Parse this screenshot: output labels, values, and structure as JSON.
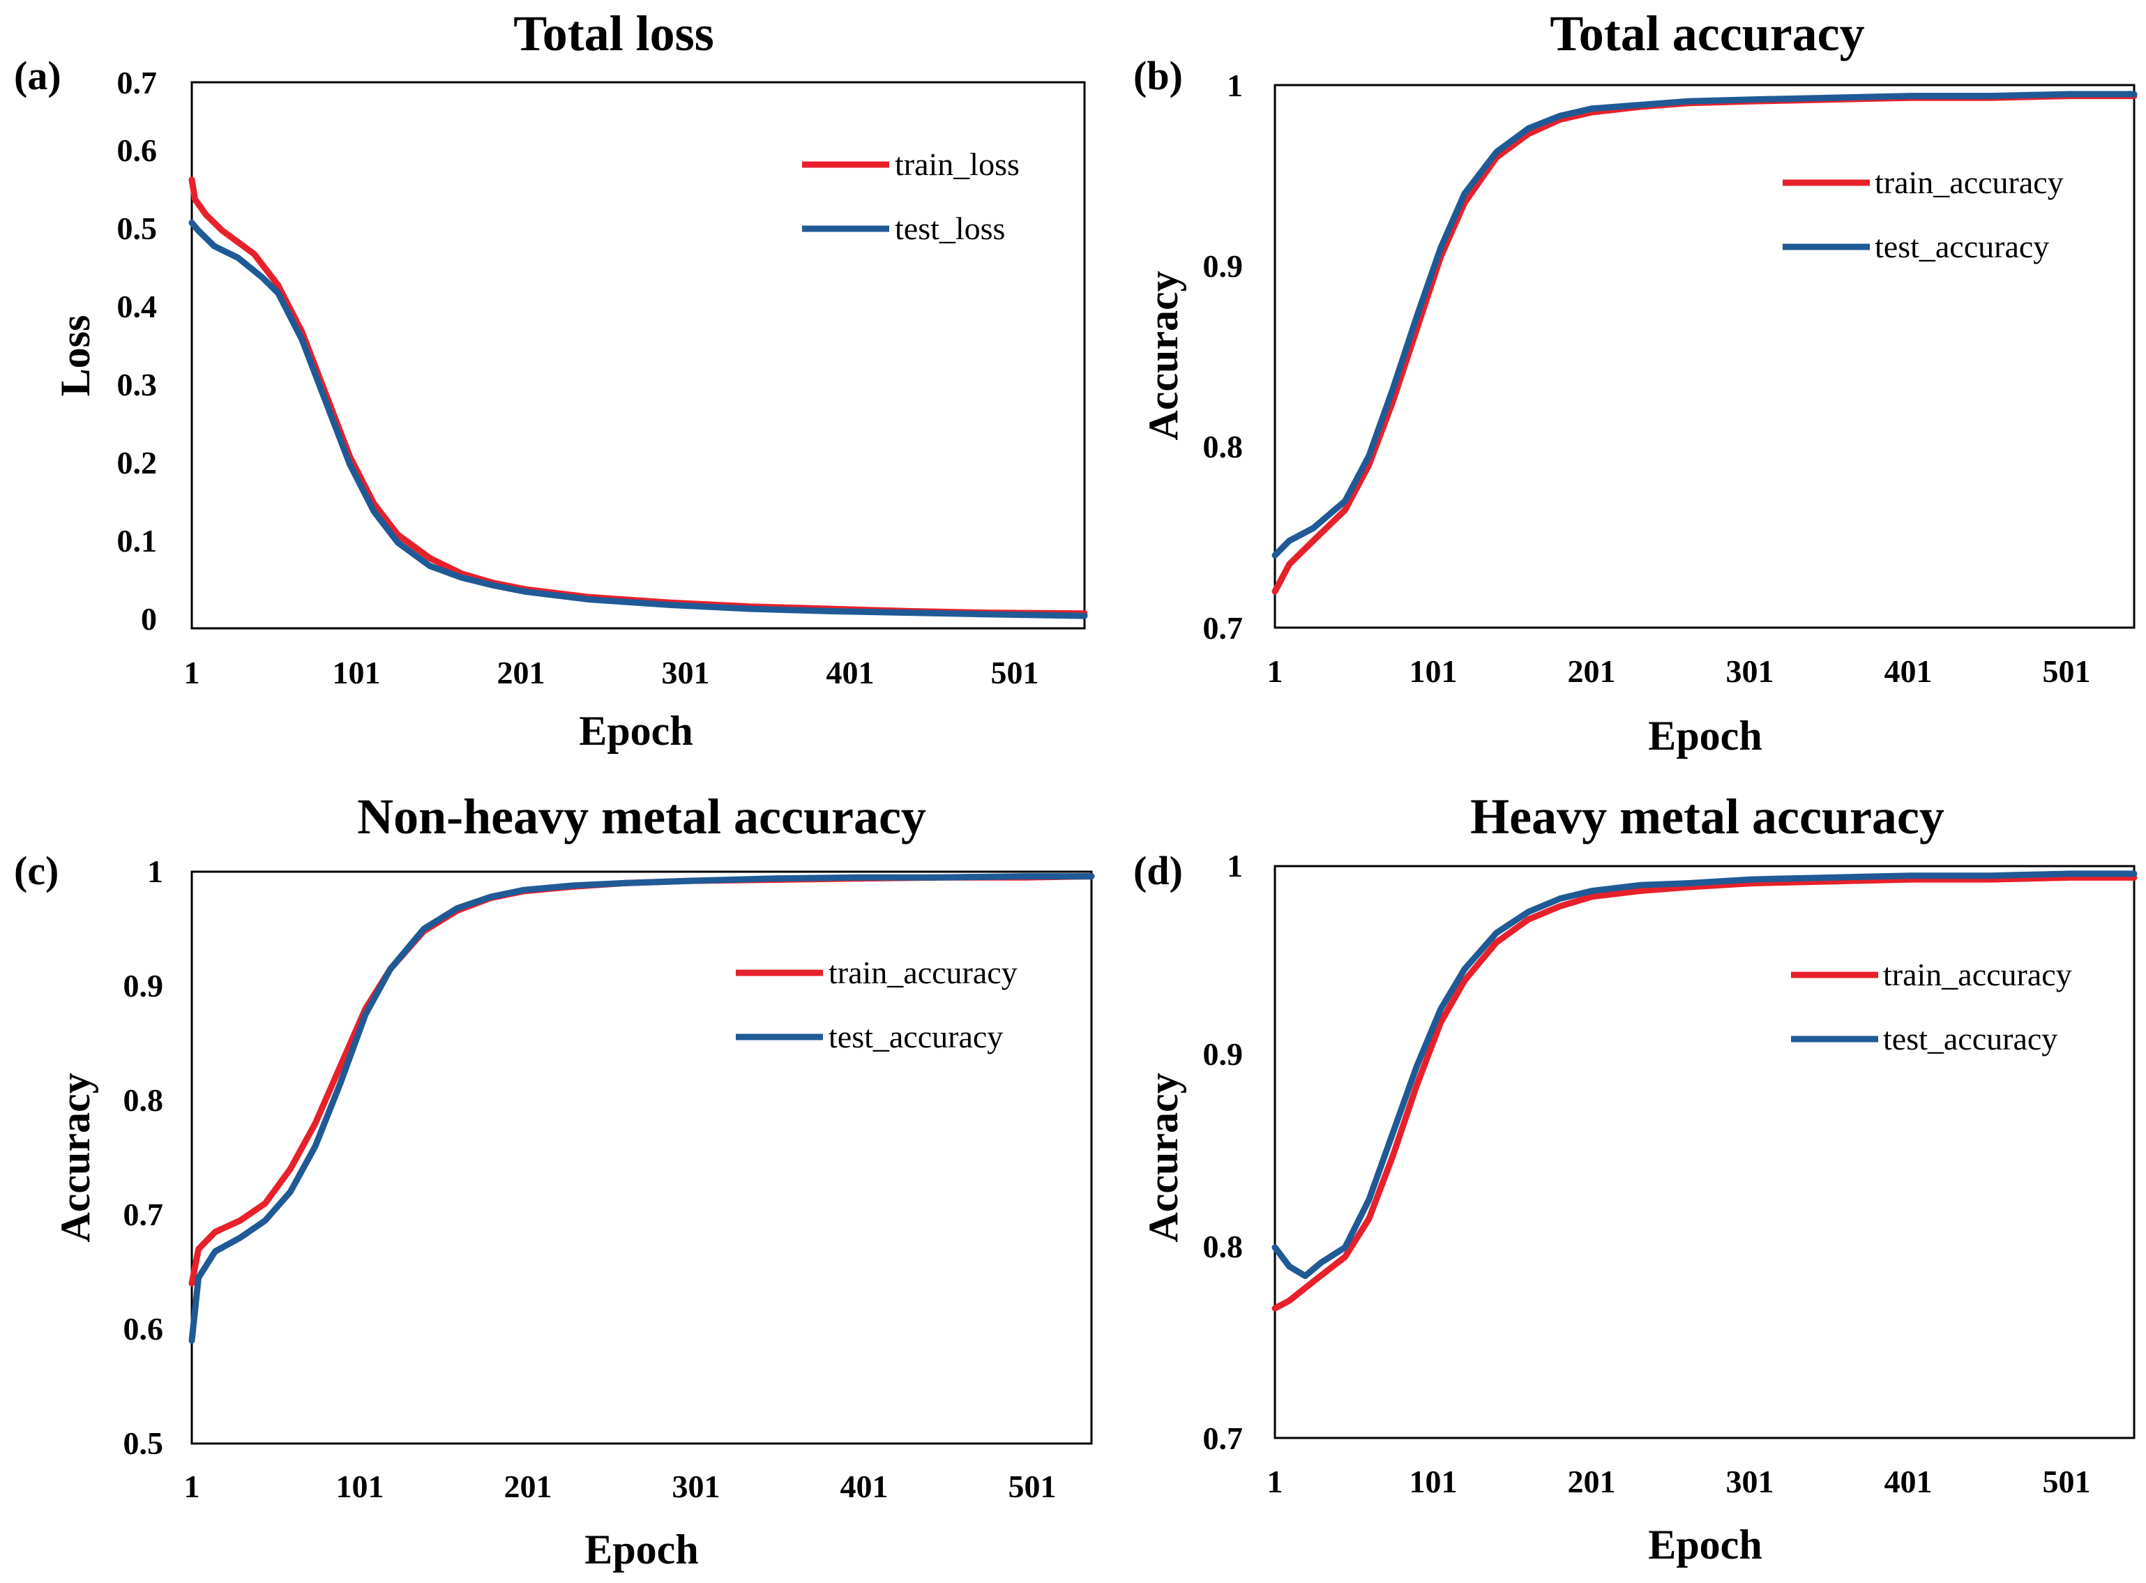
{
  "colors": {
    "train": "#e8202a",
    "test": "#1f5a96",
    "axis": "#000000",
    "background": "#ffffff"
  },
  "chart_data": [
    {
      "panel": "(a)",
      "type": "line",
      "title": "Total loss",
      "xlabel": "Epoch",
      "ylabel": "Loss",
      "xlim": [
        1,
        560
      ],
      "ylim": [
        0,
        0.7
      ],
      "xticks": [
        1,
        101,
        201,
        301,
        401,
        501
      ],
      "yticks": [
        0,
        0.1,
        0.2,
        0.3,
        0.4,
        0.5,
        0.6,
        0.7
      ],
      "xtick_labels": [
        "1",
        "101",
        "201",
        "301",
        "401",
        "501"
      ],
      "ytick_labels": [
        "0",
        "0.1",
        "0.2",
        "0.3",
        "0.4",
        "0.5",
        "0.6",
        "0.7"
      ],
      "legend_position": "top-right",
      "series": [
        {
          "name": "train_loss",
          "color_key": "train",
          "x": [
            1,
            3,
            10,
            20,
            40,
            55,
            70,
            85,
            100,
            115,
            130,
            150,
            170,
            190,
            210,
            250,
            300,
            350,
            400,
            450,
            500,
            560
          ],
          "values": [
            0.575,
            0.55,
            0.53,
            0.51,
            0.48,
            0.44,
            0.38,
            0.3,
            0.22,
            0.16,
            0.12,
            0.09,
            0.07,
            0.058,
            0.05,
            0.04,
            0.033,
            0.028,
            0.025,
            0.022,
            0.02,
            0.019
          ]
        },
        {
          "name": "test_loss",
          "color_key": "test",
          "x": [
            1,
            5,
            15,
            30,
            45,
            55,
            70,
            85,
            100,
            115,
            130,
            150,
            170,
            190,
            210,
            250,
            300,
            350,
            400,
            450,
            500,
            560
          ],
          "values": [
            0.52,
            0.51,
            0.49,
            0.475,
            0.45,
            0.43,
            0.37,
            0.29,
            0.21,
            0.15,
            0.11,
            0.08,
            0.065,
            0.055,
            0.047,
            0.037,
            0.03,
            0.025,
            0.022,
            0.02,
            0.018,
            0.016
          ]
        }
      ]
    },
    {
      "panel": "(b)",
      "type": "line",
      "title": "Total accuracy",
      "xlabel": "Epoch",
      "ylabel": "Accuracy",
      "xlim": [
        1,
        540
      ],
      "ylim": [
        0.7,
        1
      ],
      "xticks": [
        1,
        101,
        201,
        301,
        401,
        501
      ],
      "yticks": [
        0.7,
        0.8,
        0.9,
        1
      ],
      "xtick_labels": [
        "1",
        "101",
        "201",
        "301",
        "401",
        "501"
      ],
      "ytick_labels": [
        "0.7",
        "0.8",
        "0.9",
        "1"
      ],
      "legend_position": "top-right",
      "series": [
        {
          "name": "train_accuracy",
          "color_key": "train",
          "x": [
            1,
            10,
            25,
            45,
            60,
            75,
            90,
            105,
            120,
            140,
            160,
            180,
            200,
            230,
            260,
            300,
            350,
            400,
            450,
            500,
            540
          ],
          "values": [
            0.72,
            0.735,
            0.748,
            0.765,
            0.79,
            0.825,
            0.865,
            0.905,
            0.935,
            0.96,
            0.973,
            0.981,
            0.985,
            0.988,
            0.99,
            0.991,
            0.992,
            0.993,
            0.993,
            0.994,
            0.994
          ]
        },
        {
          "name": "test_accuracy",
          "color_key": "test",
          "x": [
            1,
            10,
            25,
            45,
            60,
            75,
            90,
            105,
            120,
            140,
            160,
            180,
            200,
            230,
            260,
            300,
            350,
            400,
            450,
            500,
            540
          ],
          "values": [
            0.74,
            0.748,
            0.755,
            0.77,
            0.795,
            0.832,
            0.872,
            0.91,
            0.94,
            0.963,
            0.976,
            0.983,
            0.987,
            0.989,
            0.991,
            0.992,
            0.993,
            0.994,
            0.994,
            0.995,
            0.995
          ]
        }
      ]
    },
    {
      "panel": "(c)",
      "type": "line",
      "title": "Non-heavy metal accuracy",
      "xlabel": "Epoch",
      "ylabel": "Accuracy",
      "xlim": [
        1,
        540
      ],
      "ylim": [
        0.5,
        1
      ],
      "xticks": [
        1,
        101,
        201,
        301,
        401,
        501
      ],
      "yticks": [
        0.5,
        0.6,
        0.7,
        0.8,
        0.9,
        1
      ],
      "xtick_labels": [
        "1",
        "101",
        "201",
        "301",
        "401",
        "501"
      ],
      "ytick_labels": [
        "0.5",
        "0.6",
        "0.7",
        "0.8",
        "0.9",
        "1"
      ],
      "legend_position": "top-right",
      "series": [
        {
          "name": "train_accuracy",
          "color_key": "train",
          "x": [
            1,
            5,
            15,
            30,
            45,
            60,
            75,
            90,
            105,
            120,
            140,
            160,
            180,
            200,
            230,
            260,
            300,
            350,
            400,
            450,
            500,
            540
          ],
          "values": [
            0.64,
            0.67,
            0.685,
            0.695,
            0.71,
            0.74,
            0.78,
            0.83,
            0.88,
            0.915,
            0.948,
            0.966,
            0.977,
            0.983,
            0.987,
            0.99,
            0.992,
            0.993,
            0.994,
            0.995,
            0.995,
            0.996
          ]
        },
        {
          "name": "test_accuracy",
          "color_key": "test",
          "x": [
            1,
            5,
            15,
            30,
            45,
            60,
            75,
            90,
            105,
            120,
            140,
            160,
            180,
            200,
            230,
            260,
            300,
            350,
            400,
            450,
            500,
            540
          ],
          "values": [
            0.59,
            0.645,
            0.668,
            0.68,
            0.695,
            0.72,
            0.76,
            0.815,
            0.875,
            0.915,
            0.95,
            0.968,
            0.978,
            0.984,
            0.988,
            0.99,
            0.992,
            0.994,
            0.995,
            0.995,
            0.996,
            0.996
          ]
        }
      ]
    },
    {
      "panel": "(d)",
      "type": "line",
      "title": "Heavy metal accuracy",
      "xlabel": "Epoch",
      "ylabel": "Accuracy",
      "xlim": [
        1,
        540
      ],
      "ylim": [
        0.7,
        1
      ],
      "xticks": [
        1,
        101,
        201,
        301,
        401,
        501
      ],
      "yticks": [
        0.7,
        0.8,
        0.9,
        1
      ],
      "xtick_labels": [
        "1",
        "101",
        "201",
        "301",
        "401",
        "501"
      ],
      "ytick_labels": [
        "0.7",
        "0.8",
        "0.9",
        "1"
      ],
      "legend_position": "top-right",
      "series": [
        {
          "name": "train_accuracy",
          "color_key": "train",
          "x": [
            1,
            10,
            25,
            45,
            60,
            75,
            90,
            105,
            120,
            140,
            160,
            180,
            200,
            230,
            260,
            300,
            350,
            400,
            450,
            500,
            540
          ],
          "values": [
            0.768,
            0.772,
            0.782,
            0.795,
            0.815,
            0.848,
            0.885,
            0.918,
            0.94,
            0.96,
            0.972,
            0.979,
            0.984,
            0.987,
            0.989,
            0.991,
            0.992,
            0.993,
            0.993,
            0.994,
            0.994
          ]
        },
        {
          "name": "test_accuracy",
          "color_key": "test",
          "x": [
            1,
            10,
            20,
            30,
            45,
            60,
            75,
            90,
            105,
            120,
            140,
            160,
            180,
            200,
            230,
            260,
            300,
            350,
            400,
            450,
            500,
            540
          ],
          "values": [
            0.8,
            0.79,
            0.785,
            0.792,
            0.8,
            0.825,
            0.86,
            0.895,
            0.925,
            0.946,
            0.965,
            0.976,
            0.983,
            0.987,
            0.99,
            0.991,
            0.993,
            0.994,
            0.995,
            0.995,
            0.996,
            0.996
          ]
        }
      ]
    }
  ]
}
